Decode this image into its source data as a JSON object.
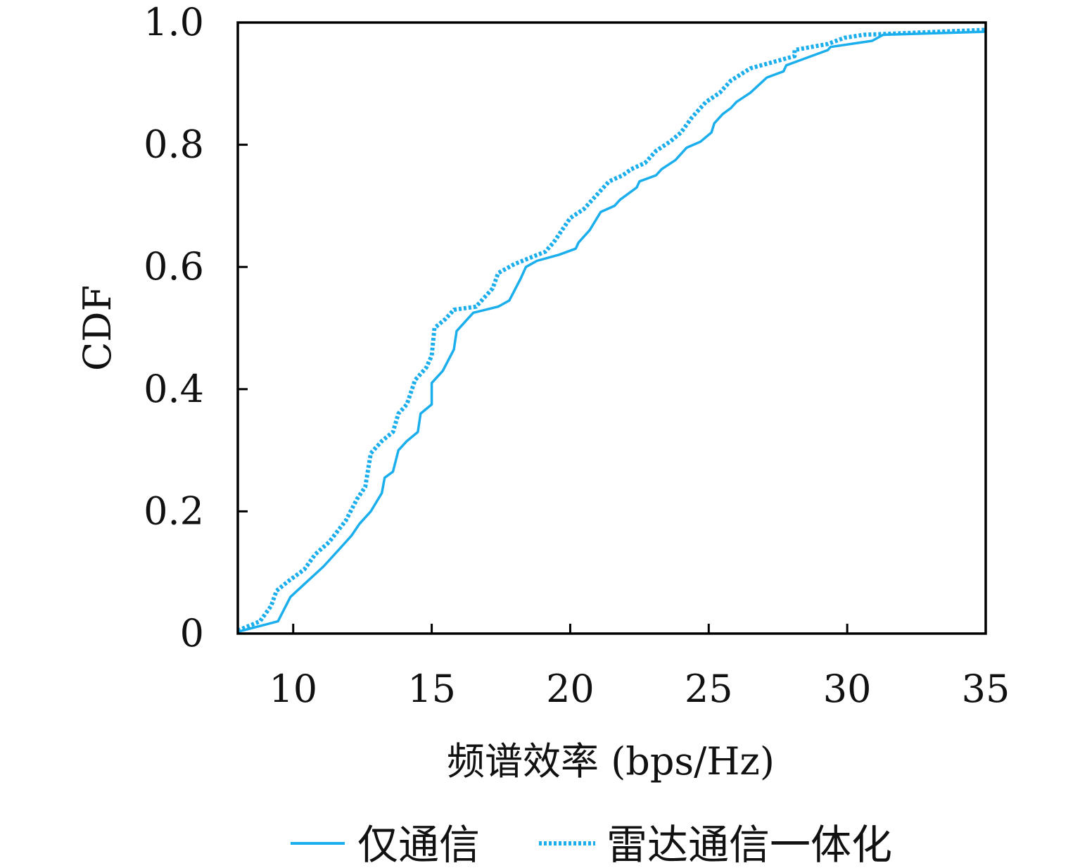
{
  "chart_data": {
    "type": "line",
    "title": "",
    "xlabel": "频谱效率 (bps/Hz)",
    "ylabel": "CDF",
    "xlim": [
      8,
      35
    ],
    "ylim": [
      0,
      1.0
    ],
    "xticks": [
      10,
      15,
      20,
      25,
      30,
      35
    ],
    "xtick_labels": [
      "10",
      "15",
      "20",
      "25",
      "30",
      "35"
    ],
    "yticks": [
      0,
      0.2,
      0.4,
      0.6,
      0.8,
      1.0
    ],
    "ytick_labels": [
      "0",
      "0.2",
      "0.4",
      "0.6",
      "0.8",
      "1.0"
    ],
    "grid": false,
    "legend_position": "bottom",
    "colors": {
      "line": "#1aaeed"
    },
    "series": [
      {
        "name": "仅通信",
        "style": "solid",
        "x": [
          8,
          9.45,
          9.9,
          10.5,
          11.1,
          11.7,
          12.1,
          12.4,
          12.8,
          13.2,
          13.3,
          13.6,
          13.8,
          14.1,
          14.5,
          14.6,
          15.0,
          15.0,
          15.4,
          15.8,
          15.9,
          16.2,
          16.5,
          17.4,
          17.8,
          18.2,
          18.4,
          18.8,
          19.6,
          20.2,
          20.3,
          20.7,
          21.1,
          21.6,
          21.8,
          22.4,
          22.5,
          23.1,
          23.3,
          23.8,
          24.2,
          24.7,
          25.1,
          25.2,
          25.5,
          25.8,
          26.0,
          26.5,
          27.1,
          27.7,
          27.8,
          29.3,
          29.4,
          30.9,
          31.3,
          35
        ],
        "y": [
          0.003,
          0.02,
          0.06,
          0.085,
          0.11,
          0.14,
          0.16,
          0.18,
          0.2,
          0.23,
          0.255,
          0.265,
          0.3,
          0.315,
          0.33,
          0.36,
          0.375,
          0.41,
          0.43,
          0.465,
          0.495,
          0.51,
          0.525,
          0.535,
          0.545,
          0.58,
          0.6,
          0.61,
          0.62,
          0.63,
          0.64,
          0.66,
          0.69,
          0.7,
          0.71,
          0.73,
          0.74,
          0.75,
          0.76,
          0.775,
          0.795,
          0.805,
          0.82,
          0.835,
          0.85,
          0.86,
          0.87,
          0.885,
          0.91,
          0.92,
          0.93,
          0.955,
          0.96,
          0.97,
          0.98,
          0.985
        ]
      },
      {
        "name": "雷达通信一体化",
        "style": "dotted",
        "x": [
          8,
          8.8,
          9.2,
          9.4,
          9.8,
          10.4,
          10.8,
          11.3,
          11.9,
          12.3,
          12.6,
          12.8,
          13.2,
          13.6,
          13.8,
          14.1,
          14.4,
          14.8,
          15.0,
          15.1,
          15.5,
          15.8,
          16.6,
          17.2,
          17.4,
          18.0,
          19.1,
          19.4,
          20.0,
          20.5,
          20.8,
          21.4,
          21.9,
          22.2,
          22.7,
          23.1,
          23.6,
          24.0,
          24.4,
          24.9,
          25.4,
          25.8,
          26.5,
          28.1,
          28.1,
          29.3,
          29.9,
          30.6,
          35
        ],
        "y": [
          0.005,
          0.02,
          0.045,
          0.07,
          0.085,
          0.105,
          0.13,
          0.15,
          0.185,
          0.22,
          0.24,
          0.295,
          0.315,
          0.33,
          0.36,
          0.375,
          0.415,
          0.435,
          0.455,
          0.5,
          0.515,
          0.53,
          0.535,
          0.565,
          0.59,
          0.605,
          0.625,
          0.64,
          0.68,
          0.695,
          0.71,
          0.74,
          0.75,
          0.76,
          0.77,
          0.79,
          0.805,
          0.82,
          0.845,
          0.87,
          0.885,
          0.905,
          0.925,
          0.945,
          0.955,
          0.965,
          0.975,
          0.98,
          0.988
        ]
      }
    ]
  }
}
